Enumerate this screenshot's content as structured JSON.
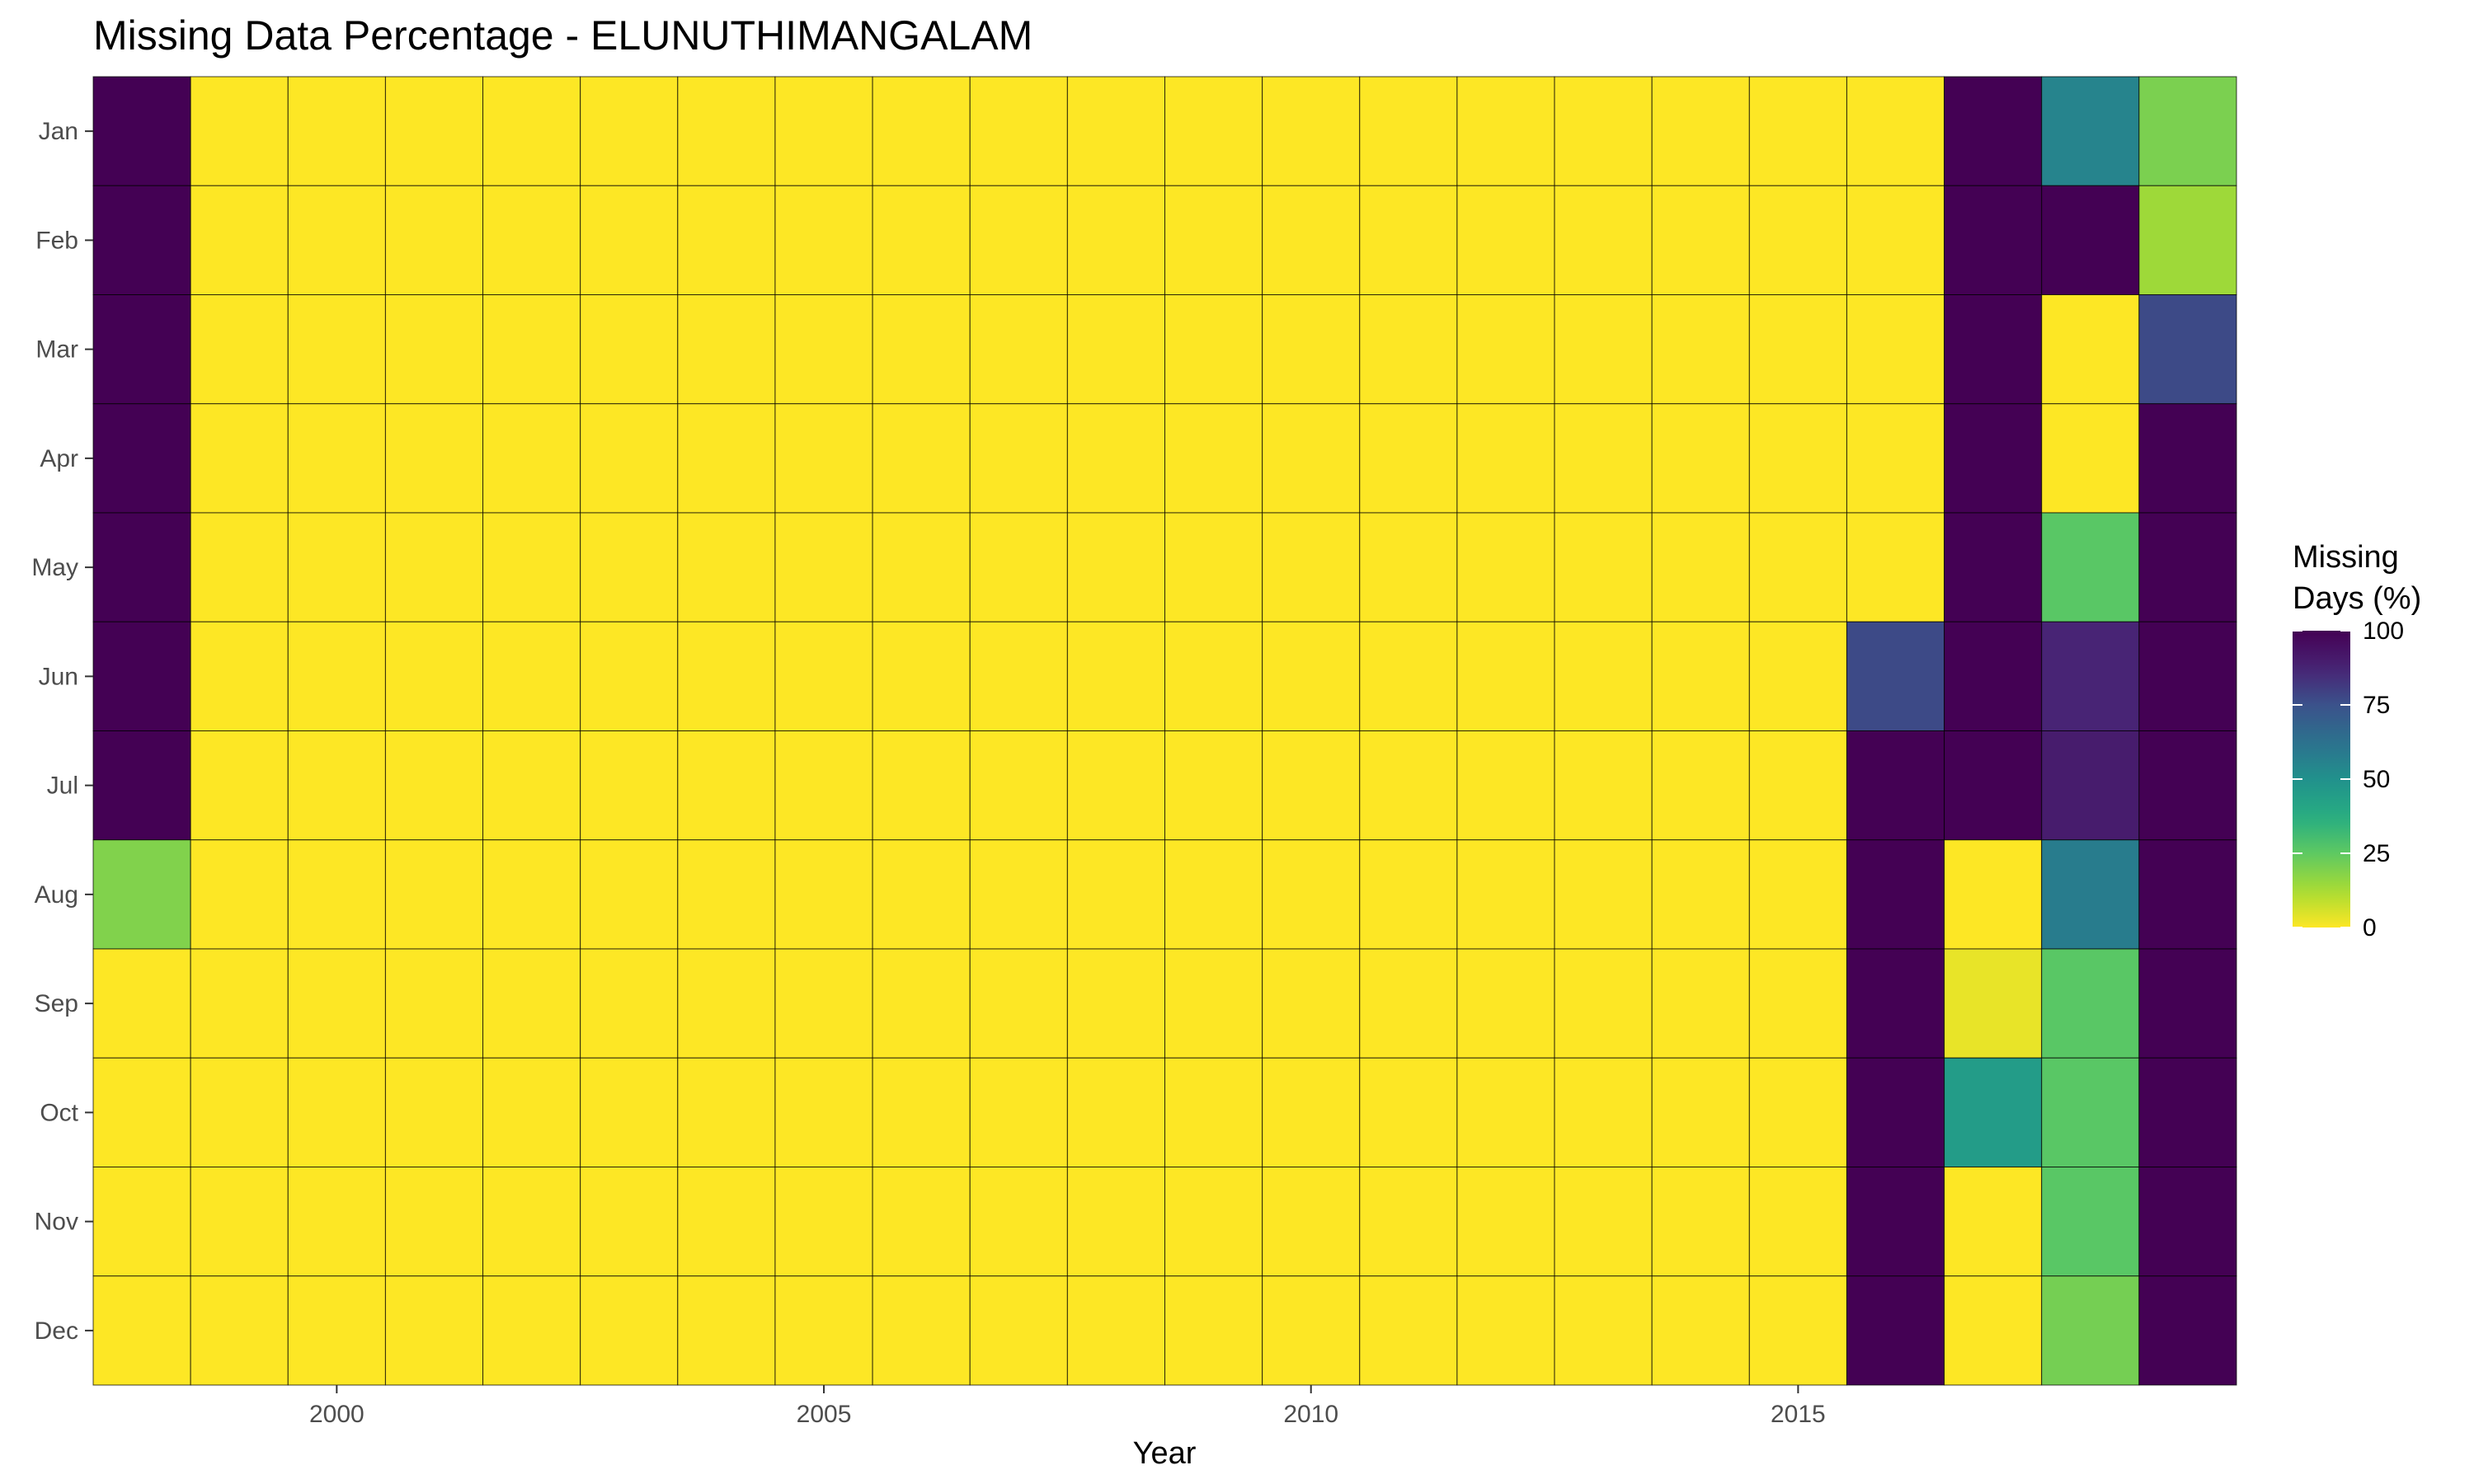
{
  "chart_data": {
    "type": "heatmap",
    "title": "Missing Data Percentage - ELUNUTHIMANGALAM",
    "xlabel": "Year",
    "ylabel": "",
    "x_ticks": [
      2000,
      2005,
      2010,
      2015
    ],
    "years": [
      1998,
      1999,
      2000,
      2001,
      2002,
      2003,
      2004,
      2005,
      2006,
      2007,
      2008,
      2009,
      2010,
      2011,
      2012,
      2013,
      2014,
      2015,
      2016,
      2017,
      2018,
      2019
    ],
    "months": [
      "Jan",
      "Feb",
      "Mar",
      "Apr",
      "May",
      "Jun",
      "Jul",
      "Aug",
      "Sep",
      "Oct",
      "Nov",
      "Dec"
    ],
    "legend": {
      "title_line1": "Missing",
      "title_line2": "Days (%)",
      "ticks": [
        0,
        25,
        50,
        75,
        100
      ],
      "range": [
        0,
        100
      ],
      "colormap": "viridis reversed"
    },
    "values": [
      [
        100,
        0,
        0,
        0,
        0,
        0,
        0,
        0,
        0,
        0,
        0,
        0,
        0,
        0,
        0,
        0,
        0,
        0,
        0,
        100,
        55,
        20
      ],
      [
        100,
        0,
        0,
        0,
        0,
        0,
        0,
        0,
        0,
        0,
        0,
        0,
        0,
        0,
        0,
        0,
        0,
        0,
        0,
        100,
        100,
        14
      ],
      [
        100,
        0,
        0,
        0,
        0,
        0,
        0,
        0,
        0,
        0,
        0,
        0,
        0,
        0,
        0,
        0,
        0,
        0,
        0,
        100,
        0,
        77
      ],
      [
        100,
        0,
        0,
        0,
        0,
        0,
        0,
        0,
        0,
        0,
        0,
        0,
        0,
        0,
        0,
        0,
        0,
        0,
        0,
        100,
        0,
        100
      ],
      [
        100,
        0,
        0,
        0,
        0,
        0,
        0,
        0,
        0,
        0,
        0,
        0,
        0,
        0,
        0,
        0,
        0,
        0,
        0,
        100,
        26,
        100
      ],
      [
        100,
        0,
        0,
        0,
        0,
        0,
        0,
        0,
        0,
        0,
        0,
        0,
        0,
        0,
        0,
        0,
        0,
        0,
        77,
        100,
        87,
        100
      ],
      [
        100,
        0,
        0,
        0,
        0,
        0,
        0,
        0,
        0,
        0,
        0,
        0,
        0,
        0,
        0,
        0,
        0,
        0,
        100,
        100,
        90,
        100
      ],
      [
        19,
        0,
        0,
        0,
        0,
        0,
        0,
        0,
        0,
        0,
        0,
        0,
        0,
        0,
        0,
        0,
        0,
        0,
        100,
        0,
        58,
        100
      ],
      [
        0,
        0,
        0,
        0,
        0,
        0,
        0,
        0,
        0,
        0,
        0,
        0,
        0,
        0,
        0,
        0,
        0,
        0,
        100,
        3,
        26,
        100
      ],
      [
        0,
        0,
        0,
        0,
        0,
        0,
        0,
        0,
        0,
        0,
        0,
        0,
        0,
        0,
        0,
        0,
        0,
        0,
        100,
        45,
        26,
        100
      ],
      [
        0,
        0,
        0,
        0,
        0,
        0,
        0,
        0,
        0,
        0,
        0,
        0,
        0,
        0,
        0,
        0,
        0,
        0,
        100,
        0,
        26,
        100
      ],
      [
        0,
        0,
        0,
        0,
        0,
        0,
        0,
        0,
        0,
        0,
        0,
        0,
        0,
        0,
        0,
        0,
        0,
        0,
        100,
        0,
        21,
        100
      ]
    ]
  }
}
